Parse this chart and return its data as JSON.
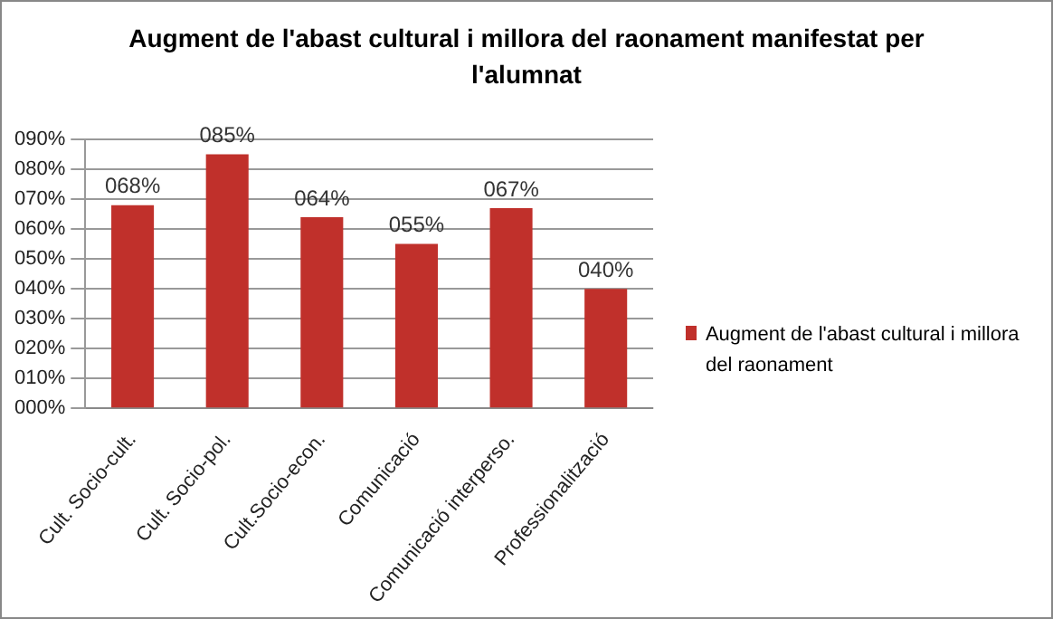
{
  "chart_data": {
    "type": "bar",
    "title": "Augment de l'abast cultural i millora del raonament manifestat per l'alumnat",
    "categories": [
      "Cult. Socio-cult.",
      "Cult. Socio-pol.",
      "Cult.Socio-econ.",
      "Comunicació",
      "Comunicació interperso.",
      "Professionalització"
    ],
    "series": [
      {
        "name": "Augment de l'abast cultural i millora del raonament",
        "color": "#c0302b",
        "values": [
          68,
          85,
          64,
          55,
          67,
          40
        ],
        "value_labels": [
          "068%",
          "085%",
          "064%",
          "055%",
          "067%",
          "040%"
        ]
      }
    ],
    "ylim": [
      0,
      90
    ],
    "yticks": [
      {
        "value": 0,
        "label": "000%"
      },
      {
        "value": 10,
        "label": "010%"
      },
      {
        "value": 20,
        "label": "020%"
      },
      {
        "value": 30,
        "label": "030%"
      },
      {
        "value": 40,
        "label": "040%"
      },
      {
        "value": 50,
        "label": "050%"
      },
      {
        "value": 60,
        "label": "060%"
      },
      {
        "value": 70,
        "label": "070%"
      },
      {
        "value": 80,
        "label": "080%"
      },
      {
        "value": 90,
        "label": "090%"
      }
    ],
    "grid": "y",
    "legend": "right"
  }
}
